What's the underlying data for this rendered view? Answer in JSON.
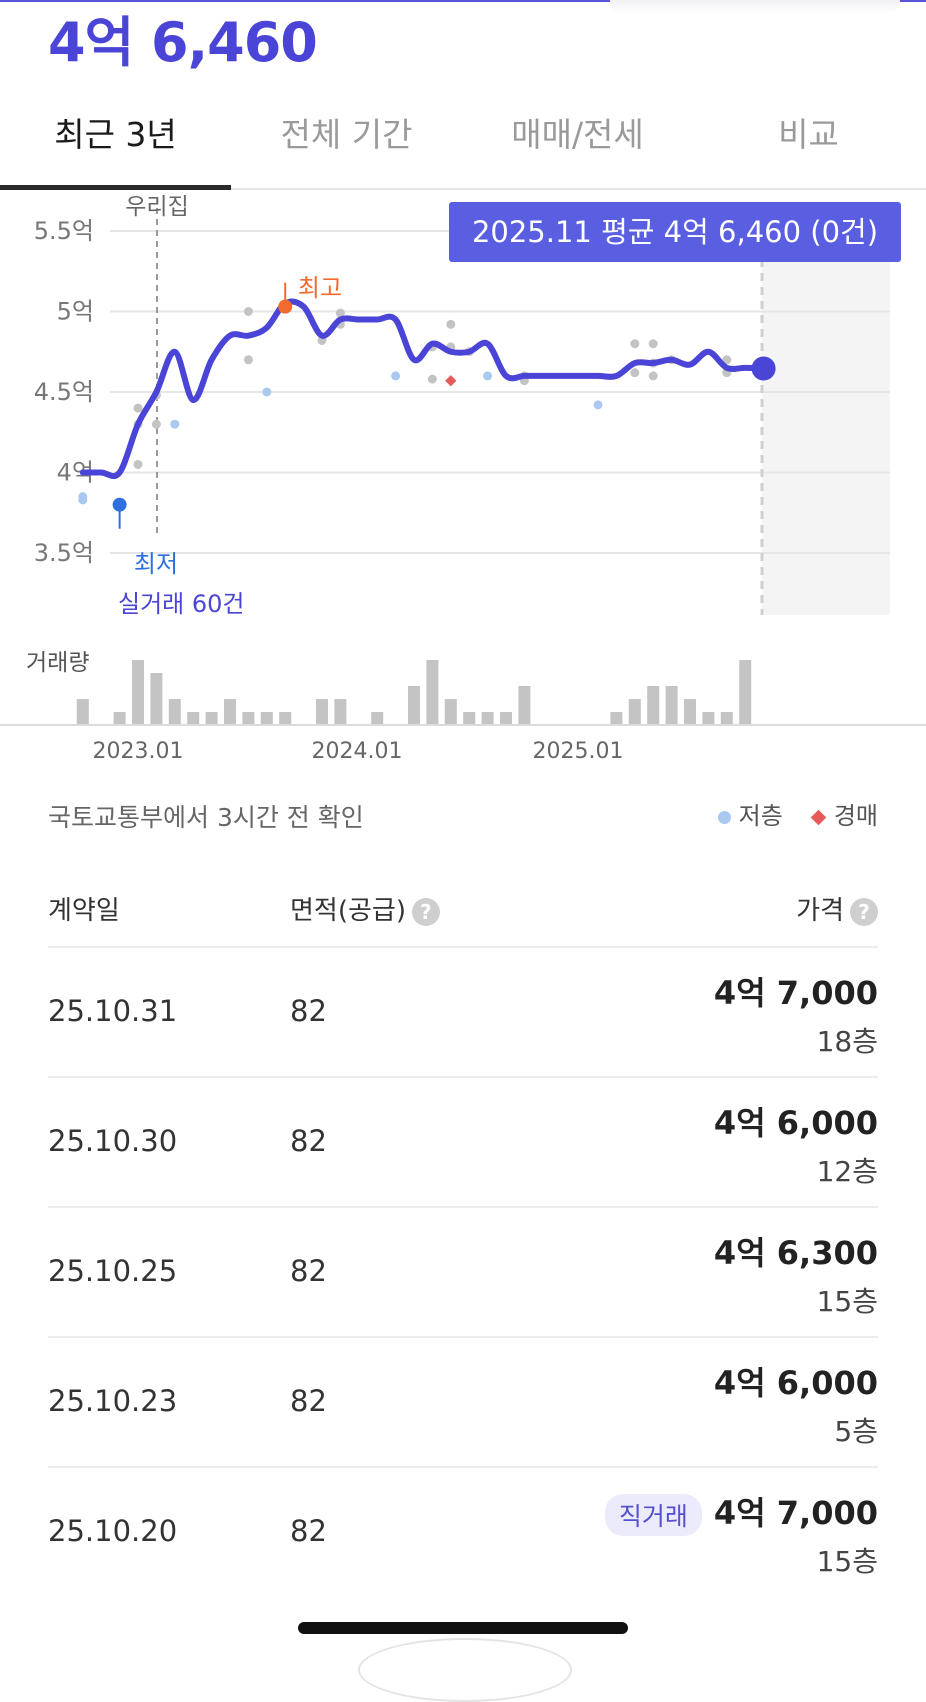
{
  "header": {
    "current_price": "4억 6,460"
  },
  "tabs": [
    {
      "label": "최근 3년",
      "active": true
    },
    {
      "label": "전체 기간",
      "active": false
    },
    {
      "label": "매매/전세",
      "active": false
    },
    {
      "label": "비교",
      "active": false
    }
  ],
  "chart": {
    "tooltip": "2025.11 평균 4억 6,460 (0건)",
    "home_marker_label": "우리집",
    "high_label": "최고",
    "low_label": "최저",
    "deal_count_label": "실거래 60건",
    "volume_label": "거래량",
    "y_tick_labels": [
      "5.5억",
      "5억",
      "4.5억",
      "4억",
      "3.5억"
    ],
    "x_tick_labels": [
      "2023.01",
      "2024.01",
      "2025.01"
    ],
    "colors": {
      "line": "#4a45d6",
      "high": "#f26b2e",
      "low": "#2f6fe0",
      "low_floor_dot": "#a9c9f0",
      "auction": "#e85a5a",
      "volume_bar": "#c4c4c4"
    }
  },
  "chart_data": {
    "type": "line",
    "title": "",
    "ylabel": "",
    "xlabel": "",
    "y_unit": "억",
    "ylim": [
      3.5,
      5.5
    ],
    "series": [
      {
        "name": "",
        "x": [
          "2022.10",
          "2022.11",
          "2022.12",
          "2023.01",
          "2023.02",
          "2023.03",
          "2023.04",
          "2023.05",
          "2023.06",
          "2023.07",
          "2023.08",
          "2023.09",
          "2023.10",
          "2023.11",
          "2023.12",
          "2024.01",
          "2024.02",
          "2024.03",
          "2024.04",
          "2024.05",
          "2024.06",
          "2024.07",
          "2024.08",
          "2024.09",
          "2024.10",
          "2024.11",
          "2024.12",
          "2025.01",
          "2025.02",
          "2025.03",
          "2025.04",
          "2025.05",
          "2025.06",
          "2025.07",
          "2025.08",
          "2025.09",
          "2025.10",
          "2025.11"
        ],
        "values": [
          4.0,
          4.0,
          4.0,
          4.3,
          4.5,
          4.75,
          4.45,
          4.7,
          4.85,
          4.85,
          4.9,
          5.05,
          5.03,
          4.85,
          4.95,
          4.95,
          4.95,
          4.95,
          4.7,
          4.8,
          4.75,
          4.75,
          4.8,
          4.6,
          4.6,
          4.6,
          4.6,
          4.6,
          4.6,
          4.6,
          4.68,
          4.68,
          4.7,
          4.67,
          4.75,
          4.65,
          4.65,
          4.646
        ]
      }
    ],
    "volume": [
      2,
      0,
      1,
      5,
      4,
      2,
      1,
      1,
      2,
      1,
      1,
      1,
      0,
      2,
      2,
      0,
      1,
      0,
      3,
      5,
      2,
      1,
      1,
      1,
      3,
      0,
      0,
      0,
      0,
      1,
      2,
      3,
      3,
      2,
      1,
      1,
      5
    ],
    "scatter": [
      {
        "x": "2022.10",
        "y": 3.85,
        "kind": "low_floor"
      },
      {
        "x": "2022.10",
        "y": 3.83,
        "kind": "low_floor"
      },
      {
        "x": "2023.01",
        "y": 4.4,
        "kind": "normal"
      },
      {
        "x": "2023.01",
        "y": 4.3,
        "kind": "normal"
      },
      {
        "x": "2023.01",
        "y": 4.05,
        "kind": "normal"
      },
      {
        "x": "2023.02",
        "y": 4.3,
        "kind": "normal"
      },
      {
        "x": "2023.02",
        "y": 4.48,
        "kind": "normal"
      },
      {
        "x": "2023.03",
        "y": 4.3,
        "kind": "low_floor"
      },
      {
        "x": "2023.07",
        "y": 5.0,
        "kind": "normal"
      },
      {
        "x": "2023.07",
        "y": 4.7,
        "kind": "normal"
      },
      {
        "x": "2023.08",
        "y": 4.5,
        "kind": "low_floor"
      },
      {
        "x": "2023.11",
        "y": 4.82,
        "kind": "normal"
      },
      {
        "x": "2023.12",
        "y": 4.99,
        "kind": "normal"
      },
      {
        "x": "2023.12",
        "y": 4.92,
        "kind": "normal"
      },
      {
        "x": "2024.03",
        "y": 4.6,
        "kind": "low_floor"
      },
      {
        "x": "2024.05",
        "y": 4.78,
        "kind": "normal"
      },
      {
        "x": "2024.05",
        "y": 4.58,
        "kind": "normal"
      },
      {
        "x": "2024.06",
        "y": 4.92,
        "kind": "normal"
      },
      {
        "x": "2024.06",
        "y": 4.78,
        "kind": "normal"
      },
      {
        "x": "2024.06",
        "y": 4.57,
        "kind": "auction"
      },
      {
        "x": "2024.07",
        "y": 4.75,
        "kind": "normal"
      },
      {
        "x": "2024.08",
        "y": 4.6,
        "kind": "low_floor"
      },
      {
        "x": "2024.10",
        "y": 4.6,
        "kind": "normal"
      },
      {
        "x": "2024.10",
        "y": 4.57,
        "kind": "normal"
      },
      {
        "x": "2025.02",
        "y": 4.42,
        "kind": "low_floor"
      },
      {
        "x": "2025.04",
        "y": 4.8,
        "kind": "normal"
      },
      {
        "x": "2025.04",
        "y": 4.62,
        "kind": "normal"
      },
      {
        "x": "2025.05",
        "y": 4.8,
        "kind": "normal"
      },
      {
        "x": "2025.05",
        "y": 4.68,
        "kind": "normal"
      },
      {
        "x": "2025.05",
        "y": 4.6,
        "kind": "normal"
      },
      {
        "x": "2025.06",
        "y": 4.7,
        "kind": "normal"
      },
      {
        "x": "2025.09",
        "y": 4.7,
        "kind": "normal"
      },
      {
        "x": "2025.09",
        "y": 4.62,
        "kind": "normal"
      }
    ],
    "high": {
      "x": "2023.09",
      "y": 5.03
    },
    "low": {
      "x": "2022.12",
      "y": 3.8
    },
    "home_marker_x": "2022.12",
    "grid": true,
    "legend": "bottom-right"
  },
  "table_meta": {
    "source": "국토교통부에서 3시간 전 확인",
    "legend_low_floor": "저층",
    "legend_auction": "경매"
  },
  "table": {
    "headers": {
      "date": "계약일",
      "area": "면적(공급)",
      "price": "가격"
    },
    "help_glyph": "?",
    "rows": [
      {
        "date": "25.10.31",
        "area": "82",
        "price": "4억 7,000",
        "floor": "18층",
        "badge": ""
      },
      {
        "date": "25.10.30",
        "area": "82",
        "price": "4억 6,000",
        "floor": "12층",
        "badge": ""
      },
      {
        "date": "25.10.25",
        "area": "82",
        "price": "4억 6,300",
        "floor": "15층",
        "badge": ""
      },
      {
        "date": "25.10.23",
        "area": "82",
        "price": "4억 6,000",
        "floor": "5층",
        "badge": ""
      },
      {
        "date": "25.10.20",
        "area": "82",
        "price": "4억 7,000",
        "floor": "15층",
        "badge": "직거래"
      }
    ]
  }
}
